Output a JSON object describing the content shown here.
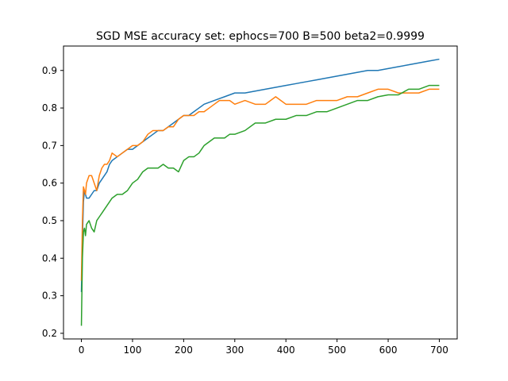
{
  "chart_data": {
    "type": "line",
    "title": "SGD MSE accuracy set: ephocs=700 B=500 beta2=0.9999",
    "xlabel": "",
    "ylabel": "",
    "xlim": [
      -35,
      735
    ],
    "ylim": [
      0.185,
      0.965
    ],
    "x_ticks": [
      0,
      100,
      200,
      300,
      400,
      500,
      600,
      700
    ],
    "y_ticks": [
      0.2,
      0.3,
      0.4,
      0.5,
      0.6,
      0.7,
      0.8,
      0.9
    ],
    "grid": false,
    "legend": "none",
    "series": [
      {
        "color": "#1f77b4",
        "x": [
          0,
          2,
          4,
          6,
          8,
          10,
          15,
          20,
          25,
          30,
          35,
          40,
          45,
          50,
          55,
          60,
          70,
          80,
          90,
          100,
          110,
          120,
          130,
          140,
          150,
          160,
          170,
          180,
          190,
          200,
          210,
          220,
          230,
          240,
          250,
          260,
          270,
          280,
          290,
          300,
          320,
          340,
          360,
          380,
          400,
          420,
          440,
          460,
          480,
          500,
          520,
          540,
          560,
          580,
          600,
          620,
          640,
          660,
          680,
          700
        ],
        "y": [
          0.31,
          0.45,
          0.55,
          0.58,
          0.57,
          0.56,
          0.56,
          0.57,
          0.58,
          0.58,
          0.6,
          0.61,
          0.62,
          0.63,
          0.65,
          0.66,
          0.67,
          0.68,
          0.69,
          0.69,
          0.7,
          0.71,
          0.72,
          0.73,
          0.74,
          0.74,
          0.75,
          0.76,
          0.77,
          0.78,
          0.78,
          0.79,
          0.8,
          0.81,
          0.815,
          0.82,
          0.825,
          0.83,
          0.835,
          0.84,
          0.84,
          0.845,
          0.85,
          0.855,
          0.86,
          0.865,
          0.87,
          0.875,
          0.88,
          0.885,
          0.89,
          0.895,
          0.9,
          0.9,
          0.905,
          0.91,
          0.915,
          0.92,
          0.925,
          0.93
        ]
      },
      {
        "color": "#ff7f0e",
        "x": [
          0,
          2,
          4,
          6,
          8,
          10,
          15,
          20,
          25,
          30,
          35,
          40,
          45,
          50,
          55,
          60,
          70,
          80,
          90,
          100,
          110,
          120,
          130,
          140,
          150,
          160,
          170,
          180,
          190,
          200,
          210,
          220,
          230,
          240,
          250,
          260,
          270,
          280,
          290,
          300,
          320,
          340,
          360,
          380,
          400,
          420,
          440,
          460,
          480,
          500,
          520,
          540,
          560,
          580,
          600,
          620,
          640,
          660,
          680,
          700
        ],
        "y": [
          0.34,
          0.5,
          0.59,
          0.58,
          0.57,
          0.6,
          0.62,
          0.62,
          0.6,
          0.58,
          0.62,
          0.64,
          0.65,
          0.65,
          0.66,
          0.68,
          0.67,
          0.68,
          0.69,
          0.7,
          0.7,
          0.71,
          0.73,
          0.74,
          0.74,
          0.74,
          0.75,
          0.75,
          0.77,
          0.78,
          0.78,
          0.78,
          0.79,
          0.79,
          0.8,
          0.81,
          0.82,
          0.82,
          0.82,
          0.81,
          0.82,
          0.81,
          0.81,
          0.83,
          0.81,
          0.81,
          0.81,
          0.82,
          0.82,
          0.82,
          0.83,
          0.83,
          0.84,
          0.85,
          0.85,
          0.84,
          0.84,
          0.84,
          0.85,
          0.85
        ]
      },
      {
        "color": "#2ca02c",
        "x": [
          0,
          2,
          4,
          6,
          8,
          10,
          15,
          20,
          25,
          30,
          35,
          40,
          45,
          50,
          55,
          60,
          70,
          80,
          90,
          100,
          110,
          120,
          130,
          140,
          150,
          160,
          170,
          180,
          190,
          200,
          210,
          220,
          230,
          240,
          250,
          260,
          270,
          280,
          290,
          300,
          320,
          340,
          360,
          380,
          400,
          420,
          440,
          460,
          480,
          500,
          520,
          540,
          560,
          580,
          600,
          620,
          640,
          660,
          680,
          700
        ],
        "y": [
          0.22,
          0.4,
          0.47,
          0.48,
          0.46,
          0.49,
          0.5,
          0.48,
          0.47,
          0.5,
          0.51,
          0.52,
          0.53,
          0.54,
          0.55,
          0.56,
          0.57,
          0.57,
          0.58,
          0.6,
          0.61,
          0.63,
          0.64,
          0.64,
          0.64,
          0.65,
          0.64,
          0.64,
          0.63,
          0.66,
          0.67,
          0.67,
          0.68,
          0.7,
          0.71,
          0.72,
          0.72,
          0.72,
          0.73,
          0.73,
          0.74,
          0.76,
          0.76,
          0.77,
          0.77,
          0.78,
          0.78,
          0.79,
          0.79,
          0.8,
          0.81,
          0.82,
          0.82,
          0.83,
          0.835,
          0.835,
          0.85,
          0.85,
          0.86,
          0.86
        ]
      }
    ]
  }
}
